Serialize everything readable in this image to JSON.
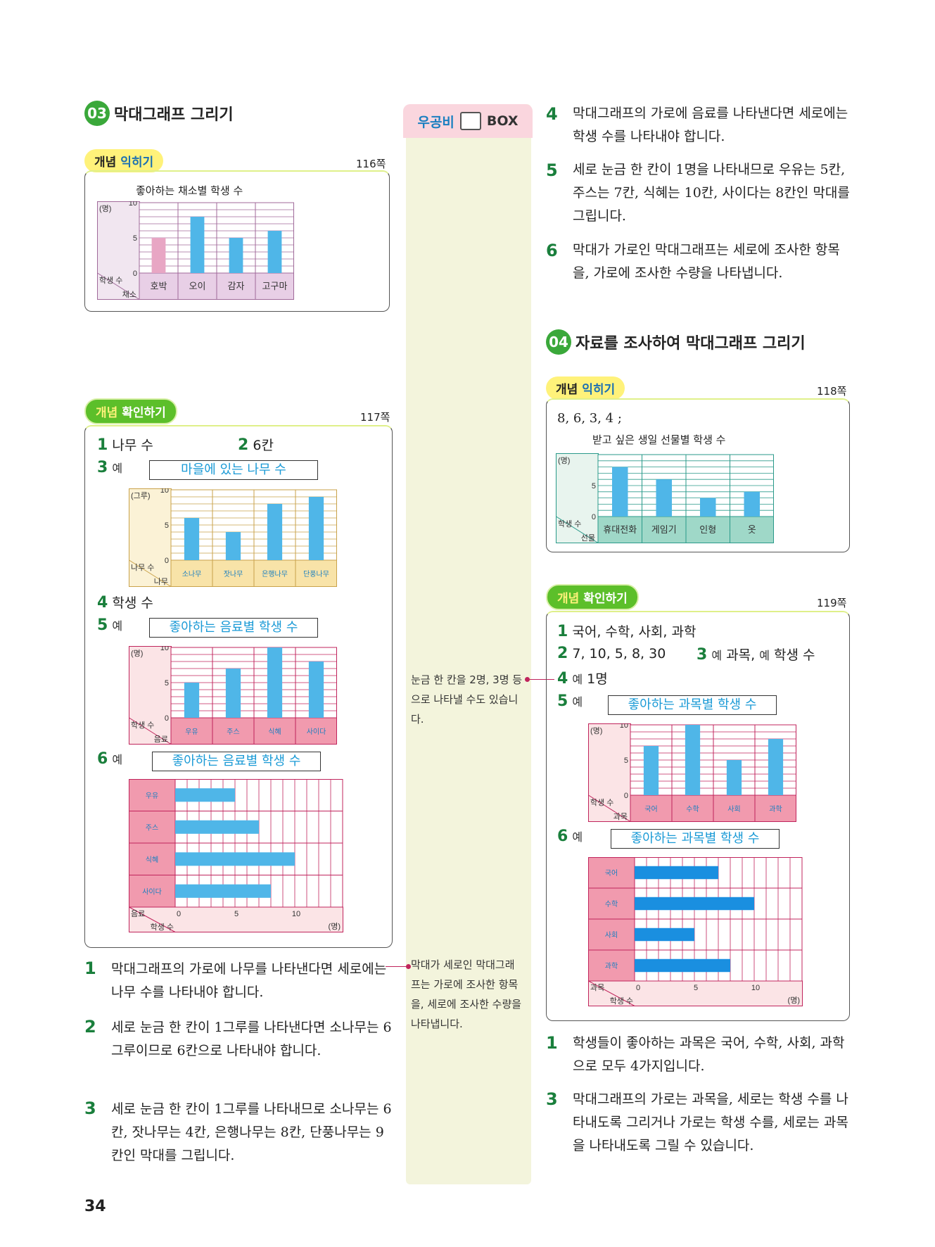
{
  "page_number": "34",
  "left": {
    "section03": {
      "badge": "03",
      "title": "막대그래프 그리기"
    },
    "practice": {
      "tag_a": "개념",
      "tag_b": "익히기",
      "page": "116쪽"
    },
    "confirm": {
      "tag_a": "개념",
      "tag_b": "확인하기",
      "page": "117쪽"
    },
    "answers": {
      "a1_num": "1",
      "a1": "나무 수",
      "a2_num": "2",
      "a2": "6칸",
      "a3_num": "3",
      "a3_ye": "예",
      "a4_num": "4",
      "a4": "학생 수",
      "a5_num": "5",
      "a5_ye": "예",
      "a6_num": "6",
      "a6_ye": "예"
    },
    "explanations": [
      {
        "num": "1",
        "text": "막대그래프의 가로에 나무를 나타낸다면 세로에는 나무 수를 나타내야 합니다."
      },
      {
        "num": "2",
        "text": "세로 눈금 한 칸이 1그루를 나타낸다면 소나무는 6그루이므로 6칸으로 나타내야 합니다."
      },
      {
        "num": "3",
        "text": "세로 눈금 한 칸이 1그루를 나타내므로 소나무는 6칸, 잣나무는 4칸, 은행나무는 8칸, 단풍나무는 9칸인 막대를 그립니다."
      }
    ]
  },
  "middle": {
    "box_title_a": "우공비",
    "box_title_b": "BOX",
    "note1": "눈금 한 칸을 2명, 3명 등으로 나타낼 수도 있습니다.",
    "note2": "막대가 세로인 막대그래프는 가로에 조사한 항목을, 세로에 조사한 수량을 나타냅니다."
  },
  "right": {
    "explanations_top": [
      {
        "num": "4",
        "text": "막대그래프의 가로에 음료를 나타낸다면 세로에는 학생 수를 나타내야 합니다."
      },
      {
        "num": "5",
        "text": "세로 눈금 한 칸이 1명을 나타내므로 우유는 5칸, 주스는 7칸, 식혜는 10칸, 사이다는 8칸인 막대를 그립니다."
      },
      {
        "num": "6",
        "text": "막대가 가로인 막대그래프는 세로에 조사한 항목을, 가로에 조사한 수량을 나타냅니다."
      }
    ],
    "section04": {
      "badge": "04",
      "title": "자료를 조사하여 막대그래프 그리기"
    },
    "practice": {
      "tag_a": "개념",
      "tag_b": "익히기",
      "page": "118쪽",
      "data_line": "8, 6, 3, 4 ;"
    },
    "confirm": {
      "tag_a": "개념",
      "tag_b": "확인하기",
      "page": "119쪽"
    },
    "answers": {
      "a1_num": "1",
      "a1": "국어, 수학, 사회, 과학",
      "a2_num": "2",
      "a2": "7, 10, 5, 8, 30",
      "a3_num": "3",
      "a3_ye1": "예",
      "a3_t1": "과목,",
      "a3_ye2": "예",
      "a3_t2": "학생 수",
      "a4_num": "4",
      "a4_ye": "예",
      "a4": "1명",
      "a5_num": "5",
      "a5_ye": "예",
      "a6_num": "6",
      "a6_ye": "예"
    },
    "explanations_bottom": [
      {
        "num": "1",
        "text": "학생들이 좋아하는 과목은 국어, 수학, 사회, 과학으로 모두 4가지입니다."
      },
      {
        "num": "3",
        "text": "막대그래프의 가로는 과목을, 세로는 학생 수를 나타내도록 그리거나 가로는 학생 수를, 세로는 과목을 나타내도록 그릴 수 있습니다."
      }
    ]
  },
  "chart_data": [
    {
      "id": "vegetables",
      "type": "bar",
      "title": "좋아하는 채소별 학생 수",
      "unit": "(명)",
      "categories": [
        "호박",
        "오이",
        "감자",
        "고구마"
      ],
      "values": [
        5,
        8,
        5,
        6
      ],
      "xlabel": "채소",
      "ylabel": "학생 수",
      "yticks": [
        "0",
        "5",
        "10"
      ],
      "ylim": [
        0,
        10
      ]
    },
    {
      "id": "trees",
      "type": "bar",
      "title": "마을에 있는 나무 수",
      "unit": "(그루)",
      "categories": [
        "소나무",
        "잣나무",
        "은행나무",
        "단풍나무"
      ],
      "values": [
        6,
        4,
        8,
        9
      ],
      "xlabel": "나무",
      "ylabel": "나무 수",
      "yticks": [
        "0",
        "5",
        "10"
      ],
      "ylim": [
        0,
        10
      ]
    },
    {
      "id": "drinks_v",
      "type": "bar",
      "title": "좋아하는 음료별 학생 수",
      "unit": "(명)",
      "categories": [
        "우유",
        "주스",
        "식혜",
        "사이다"
      ],
      "values": [
        5,
        7,
        10,
        8
      ],
      "xlabel": "음료",
      "ylabel": "학생 수",
      "yticks": [
        "0",
        "5",
        "10"
      ],
      "ylim": [
        0,
        10
      ]
    },
    {
      "id": "drinks_h",
      "type": "bar",
      "orientation": "horizontal",
      "title": "좋아하는 음료별 학생 수",
      "unit": "(명)",
      "categories": [
        "우유",
        "주스",
        "식혜",
        "사이다"
      ],
      "values": [
        5,
        7,
        10,
        8
      ],
      "xlabel": "학생 수",
      "ylabel": "음료",
      "xticks": [
        "0",
        "5",
        "10"
      ],
      "xlim": [
        0,
        14
      ]
    },
    {
      "id": "gifts",
      "type": "bar",
      "title": "받고 싶은 생일 선물별 학생 수",
      "unit": "(명)",
      "categories": [
        "휴대전화",
        "게임기",
        "인형",
        "옷"
      ],
      "values": [
        8,
        6,
        3,
        4
      ],
      "xlabel": "선물",
      "ylabel": "학생 수",
      "yticks": [
        "0",
        "5"
      ],
      "ylim": [
        0,
        10
      ]
    },
    {
      "id": "subjects_v",
      "type": "bar",
      "title": "좋아하는 과목별 학생 수",
      "unit": "(명)",
      "categories": [
        "국어",
        "수학",
        "사회",
        "과학"
      ],
      "values": [
        7,
        10,
        5,
        8
      ],
      "xlabel": "과목",
      "ylabel": "학생 수",
      "yticks": [
        "0",
        "5",
        "10"
      ],
      "ylim": [
        0,
        10
      ]
    },
    {
      "id": "subjects_h",
      "type": "bar",
      "orientation": "horizontal",
      "title": "좋아하는 과목별 학생 수",
      "unit": "(명)",
      "categories": [
        "국어",
        "수학",
        "사회",
        "과학"
      ],
      "values": [
        7,
        10,
        5,
        8
      ],
      "xlabel": "학생 수",
      "ylabel": "과목",
      "xticks": [
        "0",
        "5",
        "10"
      ],
      "xlim": [
        0,
        14
      ]
    }
  ]
}
